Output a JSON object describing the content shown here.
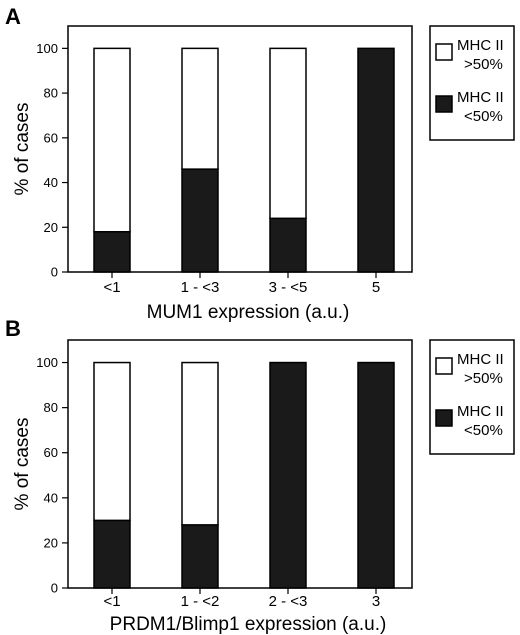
{
  "chart_data": [
    {
      "panel": "A",
      "type": "bar",
      "stacked": true,
      "categories": [
        "<1",
        "1 - <3",
        "3 - <5",
        "5"
      ],
      "series": [
        {
          "name": "MHC II <50%",
          "color": "#1a1a1a",
          "values": [
            18,
            46,
            24,
            100
          ]
        },
        {
          "name": "MHC II >50%",
          "color": "#ffffff",
          "values": [
            82,
            54,
            76,
            0
          ]
        }
      ],
      "xlabel": "MUM1 expression (a.u.)",
      "ylabel": "% of cases",
      "ylim": [
        0,
        110
      ],
      "yticks": [
        0,
        20,
        40,
        60,
        80,
        100
      ],
      "legend": [
        {
          "line1": "MHC II",
          "line2": ">50%",
          "color": "#ffffff"
        },
        {
          "line1": "MHC II",
          "line2": "<50%",
          "color": "#1a1a1a"
        }
      ],
      "legend_placement": "right"
    },
    {
      "panel": "B",
      "type": "bar",
      "stacked": true,
      "categories": [
        "<1",
        "1 - <2",
        "2 - <3",
        "3"
      ],
      "series": [
        {
          "name": "MHC II <50%",
          "color": "#1a1a1a",
          "values": [
            30,
            28,
            100,
            100
          ]
        },
        {
          "name": "MHC II >50%",
          "color": "#ffffff",
          "values": [
            70,
            72,
            0,
            0
          ]
        }
      ],
      "xlabel": "PRDM1/Blimp1 expression (a.u.)",
      "ylabel": "% of cases",
      "ylim": [
        0,
        110
      ],
      "yticks": [
        0,
        20,
        40,
        60,
        80,
        100
      ],
      "legend": [
        {
          "line1": "MHC II",
          "line2": ">50%",
          "color": "#ffffff"
        },
        {
          "line1": "MHC II",
          "line2": "<50%",
          "color": "#1a1a1a"
        }
      ],
      "legend_placement": "right"
    }
  ]
}
